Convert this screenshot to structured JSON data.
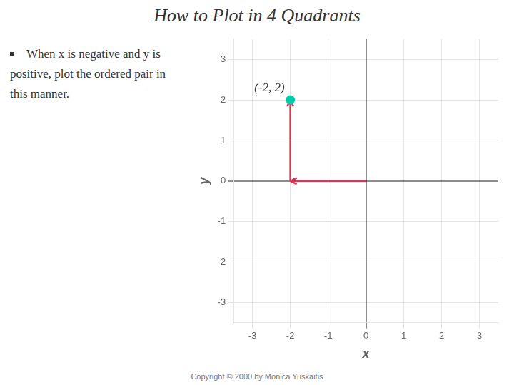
{
  "chart_data": {
    "type": "scatter",
    "title": "How to Plot in 4 Quadrants",
    "subtitle": [
      "When x is negative and y is",
      "positive, plot the ordered pair in",
      "this manner."
    ],
    "x_label": "x",
    "y_label": "y",
    "x": [
      -2
    ],
    "values": [
      2
    ],
    "color": "#00ccaa",
    "annotations": [
      {
        "text": "(-2, 2)",
        "x": -2,
        "y": 2
      },
      {
        "text": "Copyright © 2000 by Monica Yuskaitis"
      }
    ],
    "xlim": [
      -3.5,
      3.5
    ],
    "ylim": [
      -3.5,
      3.5
    ],
    "xticks": [
      -3,
      -2,
      -1,
      0,
      1,
      2,
      3
    ],
    "yticks": [
      -3,
      -2,
      -1,
      0,
      1,
      2,
      3
    ],
    "grid": true
  }
}
